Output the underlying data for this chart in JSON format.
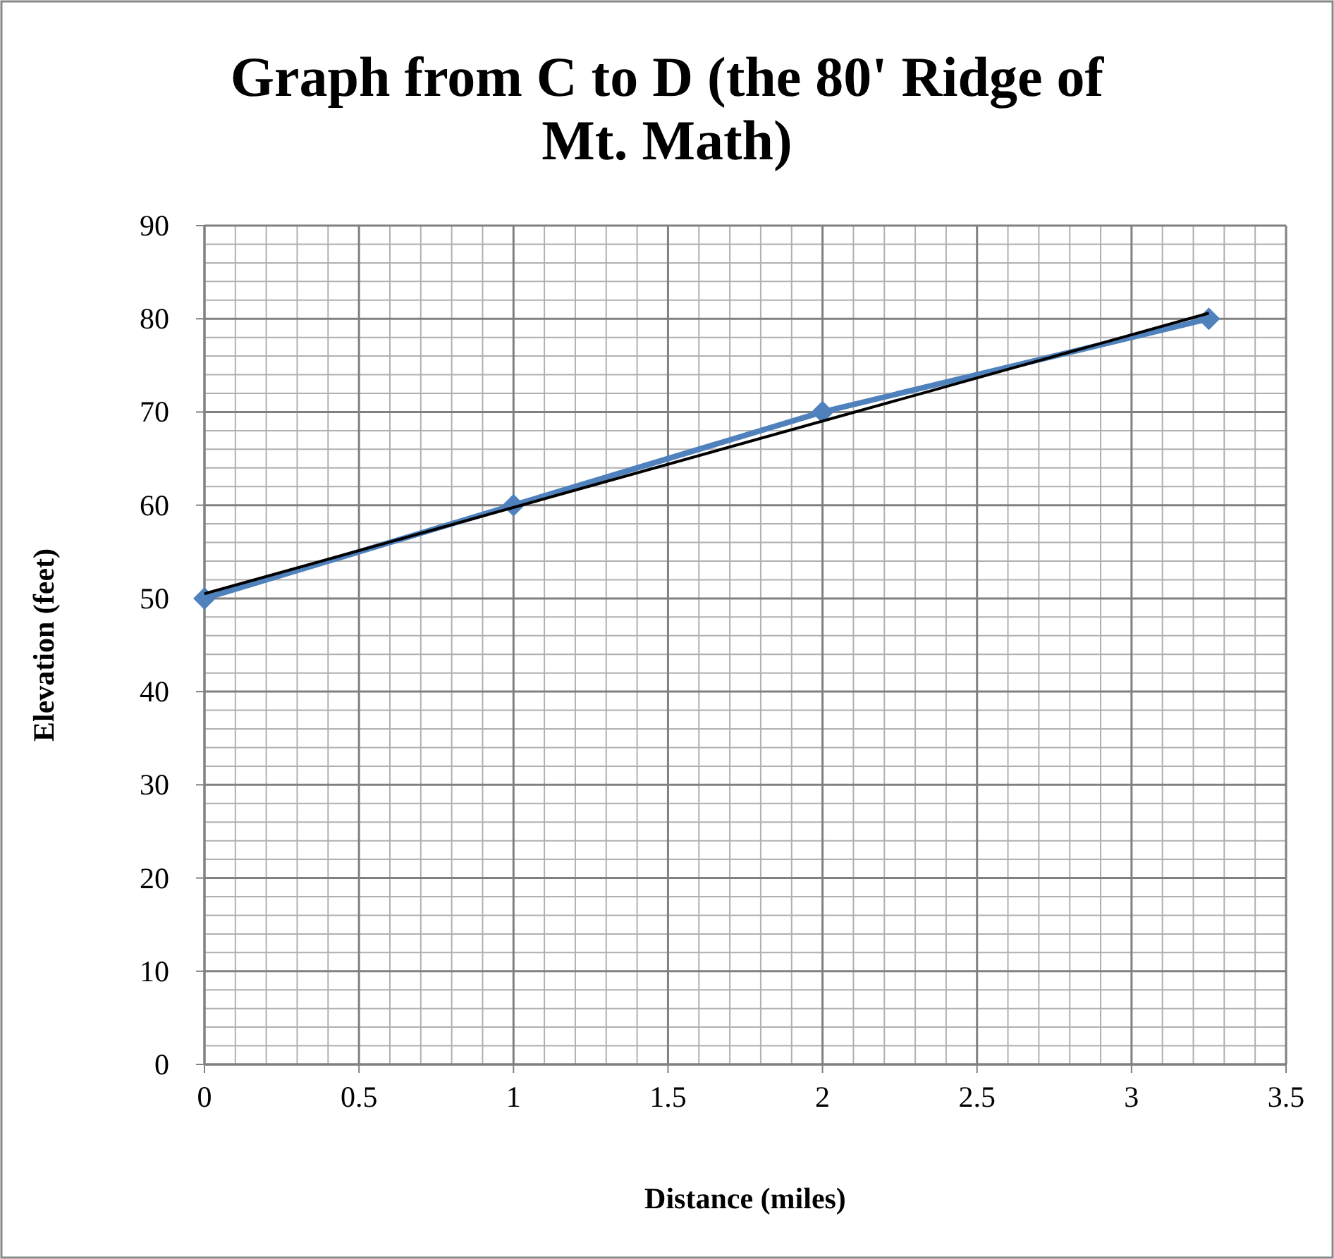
{
  "chart_data": {
    "type": "line",
    "title": "Graph from C to D (the 80' Ridge of\nMt. Math)",
    "xlabel": "Distance (miles)",
    "ylabel": "Elevation (feet)",
    "x": [
      0,
      1,
      2,
      3.25
    ],
    "series": [
      {
        "color": "#4f81bd",
        "values": [
          50,
          60,
          70,
          80
        ],
        "marker": "diamond"
      },
      {
        "type": "line",
        "color": "#000000",
        "x": [
          0,
          3.25
        ],
        "values": [
          50.5,
          80.6
        ],
        "marker": "none"
      }
    ],
    "xlim": [
      0,
      3.5
    ],
    "xticks": [
      0,
      0.5,
      1,
      1.5,
      2,
      2.5,
      3,
      3.5
    ],
    "ylim": [
      0,
      90
    ],
    "yticks": [
      0,
      10,
      20,
      30,
      40,
      50,
      60,
      70,
      80,
      90
    ],
    "grid": true
  }
}
